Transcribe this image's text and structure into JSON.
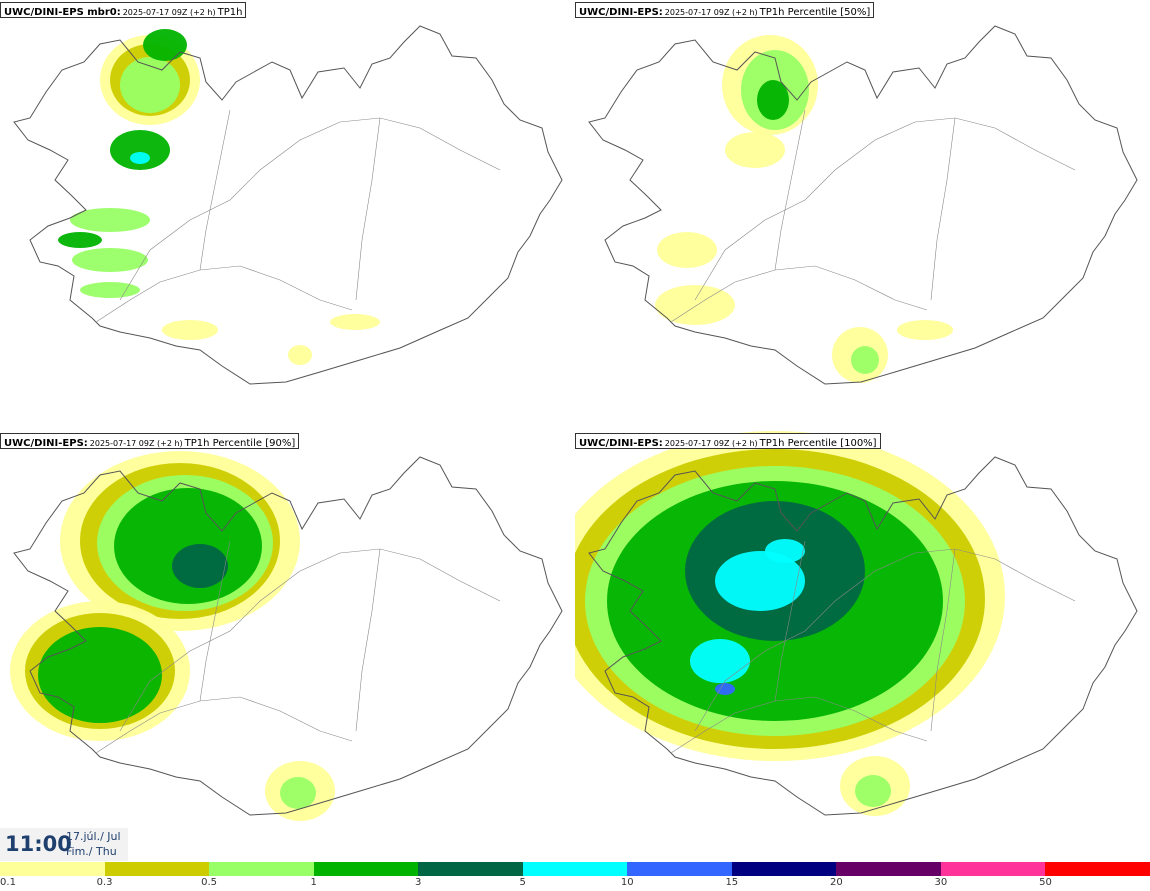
{
  "panels": [
    {
      "model": "UWC/DINI-EPS mbr0",
      "sep": ":",
      "run": "2025-07-17 09Z (+2 h)",
      "variable": "TP1h",
      "level": 1
    },
    {
      "model": "UWC/DINI-EPS",
      "sep": ":",
      "run": "2025-07-17 09Z (+2 h)",
      "variable": "TP1h Percentile [50%]",
      "level": 1
    },
    {
      "model": "UWC/DINI-EPS",
      "sep": ":",
      "run": "2025-07-17 09Z (+2 h)",
      "variable": "TP1h Percentile [90%]",
      "level": 3
    },
    {
      "model": "UWC/DINI-EPS",
      "sep": ":",
      "run": "2025-07-17 09Z (+2 h)",
      "variable": "TP1h Percentile [100%]",
      "level": 5
    }
  ],
  "time": {
    "hour": "11:00",
    "date_line1": "17.júl./ Jul",
    "date_line2": "Fim./ Thu"
  },
  "colorbar": {
    "colors": [
      "#ffff99",
      "#cccc00",
      "#99ff66",
      "#00b300",
      "#006644",
      "#00ffff",
      "#3366ff",
      "#000080",
      "#660066",
      "#ff3399",
      "#ff0000"
    ],
    "ticks": [
      "0.1",
      "0.3",
      "0.5",
      "1",
      "3",
      "5",
      "10",
      "15",
      "20",
      "30",
      "50"
    ]
  }
}
